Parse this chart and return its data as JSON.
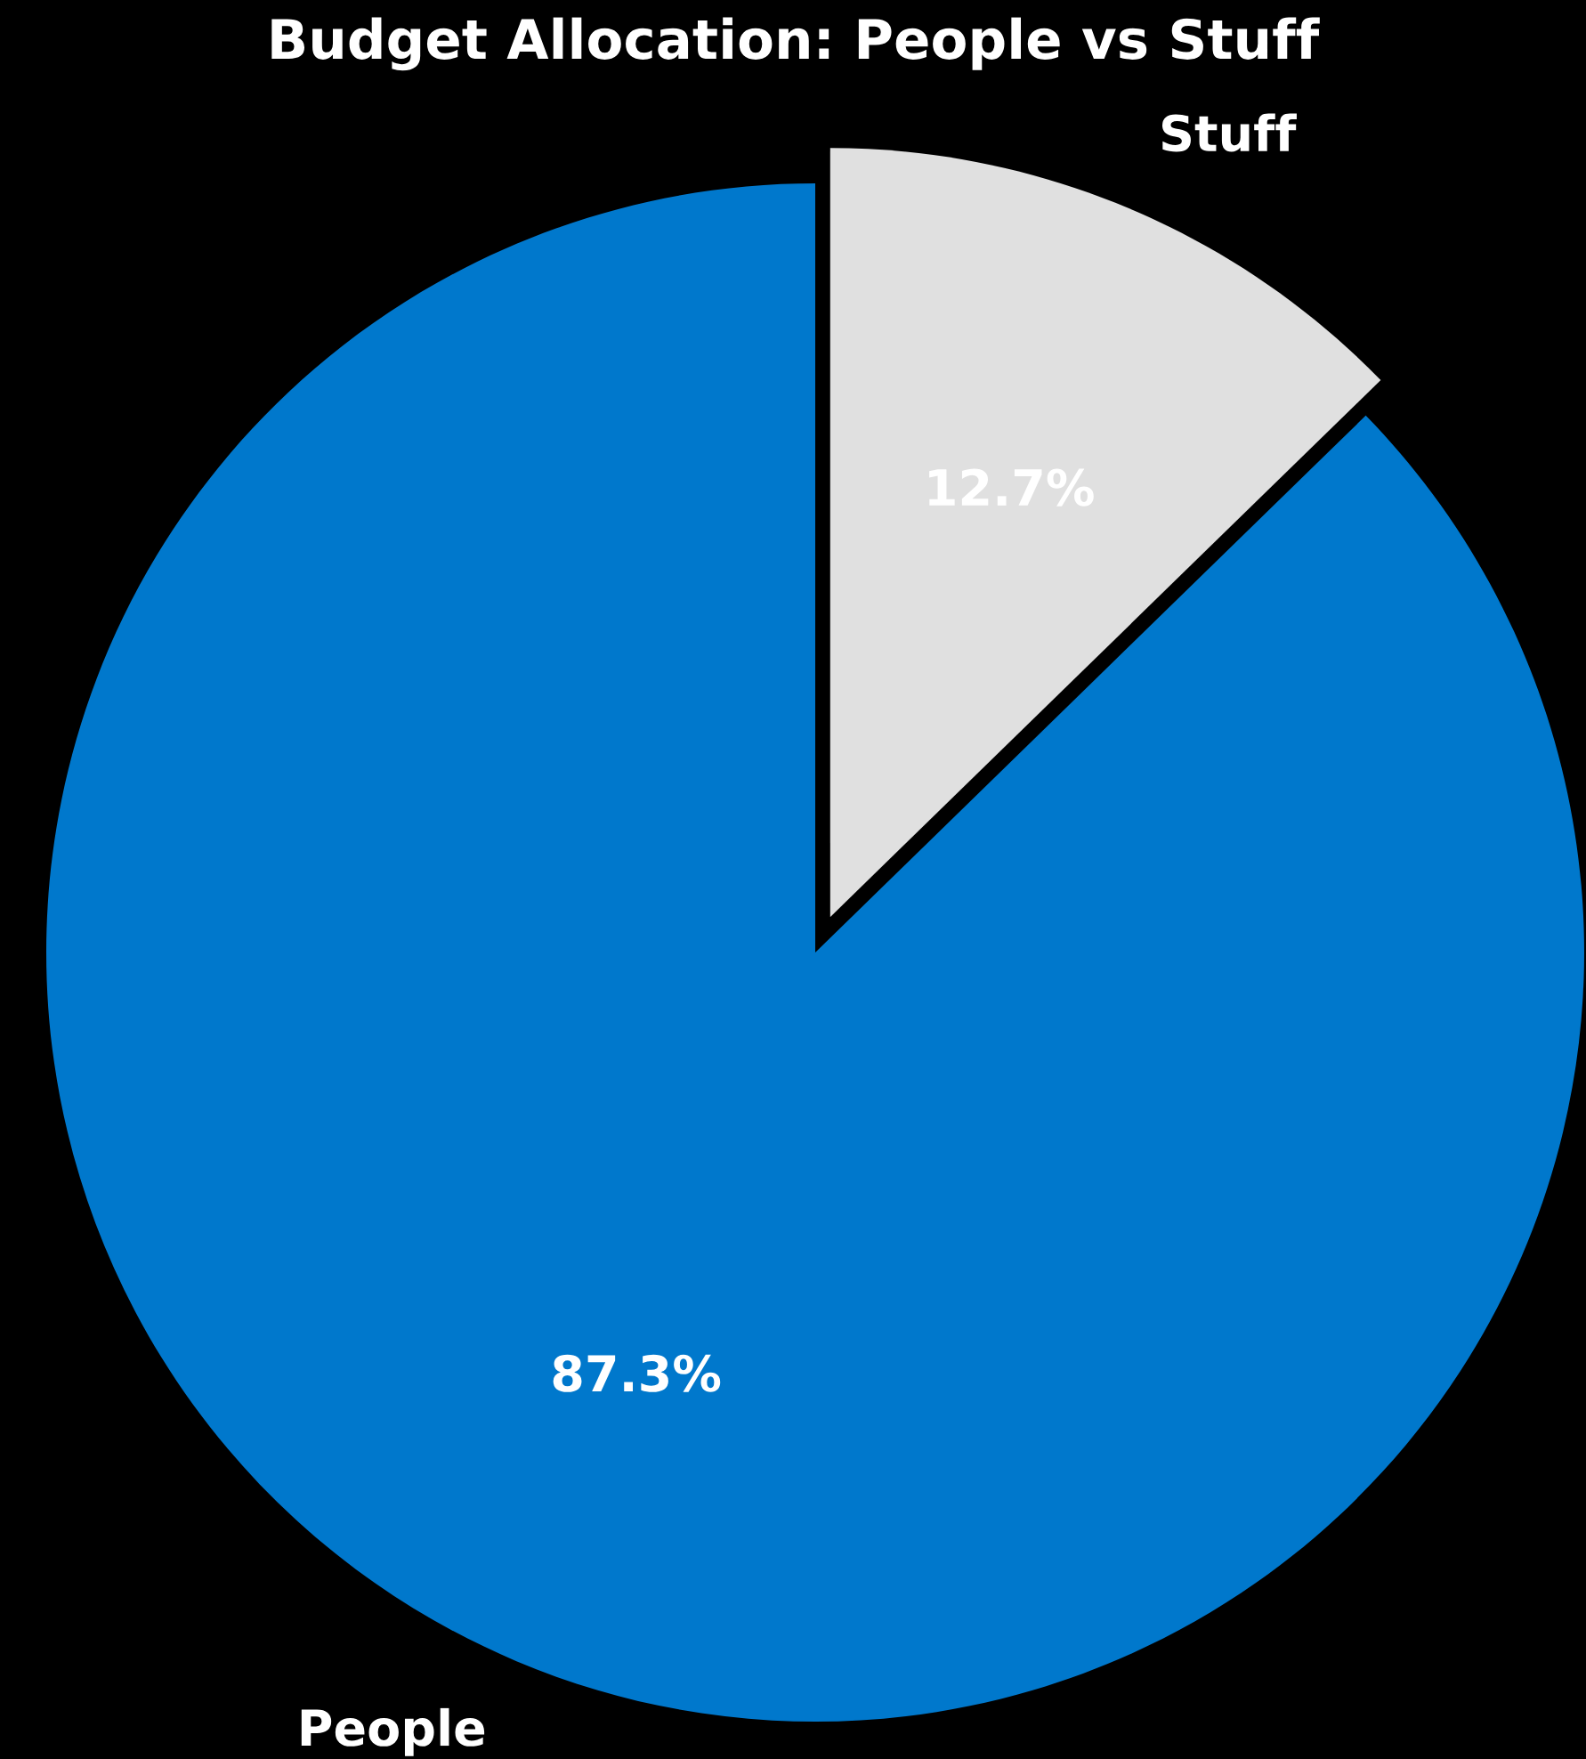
{
  "chart_data": {
    "type": "pie",
    "title": "Budget Allocation: People vs Stuff",
    "categories": [
      "Stuff",
      "People"
    ],
    "values": [
      12.7,
      87.3
    ],
    "colors": [
      "#e0e0e0",
      "#0078cc"
    ],
    "value_labels": [
      "12.7%",
      "87.3%"
    ]
  }
}
